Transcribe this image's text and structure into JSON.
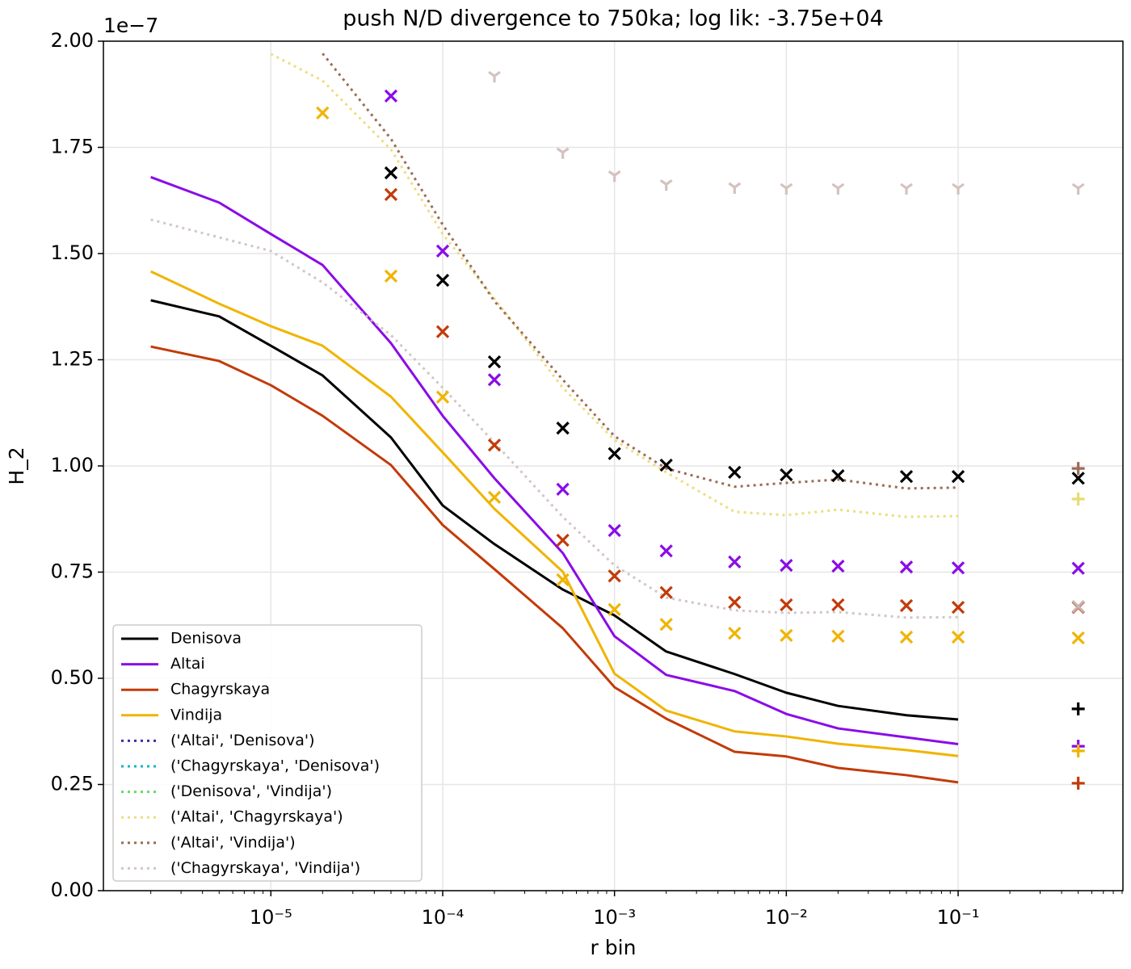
{
  "chart_data": {
    "type": "line",
    "title": "push N/D divergence to 750ka; log lik: -3.75e+04",
    "xlabel": "r bin",
    "ylabel": "H_2",
    "y_offset_label": "1e−7",
    "xscale": "log",
    "grid": true,
    "legend": "lower left",
    "xlim": [
      1.06e-06,
      0.91
    ],
    "ylim": [
      0,
      2
    ],
    "xticks": [
      {
        "value": 1e-05,
        "label": "10⁻⁵"
      },
      {
        "value": 0.0001,
        "label": "10⁻⁴"
      },
      {
        "value": 0.001,
        "label": "10⁻³"
      },
      {
        "value": 0.01,
        "label": "10⁻²"
      },
      {
        "value": 0.1,
        "label": "10⁻¹"
      }
    ],
    "xminorticks": [
      2e-06,
      3e-06,
      4e-06,
      5e-06,
      6e-06,
      7e-06,
      8e-06,
      9e-06,
      2e-05,
      3e-05,
      4e-05,
      5e-05,
      6e-05,
      7e-05,
      8e-05,
      9e-05,
      0.0002,
      0.0003,
      0.0004,
      0.0005,
      0.0006,
      0.0007,
      0.0008,
      0.0009,
      0.002,
      0.003,
      0.004,
      0.005,
      0.006,
      0.007,
      0.008,
      0.009,
      0.02,
      0.03,
      0.04,
      0.05,
      0.06,
      0.07,
      0.08,
      0.09,
      0.2,
      0.3,
      0.4,
      0.5,
      0.6,
      0.7,
      0.8,
      0.9
    ],
    "yticks": [
      {
        "value": 0,
        "label": "0.00"
      },
      {
        "value": 0.25,
        "label": "0.25"
      },
      {
        "value": 0.5,
        "label": "0.50"
      },
      {
        "value": 0.75,
        "label": "0.75"
      },
      {
        "value": 1,
        "label": "1.00"
      },
      {
        "value": 1.25,
        "label": "1.25"
      },
      {
        "value": 1.5,
        "label": "1.50"
      },
      {
        "value": 1.75,
        "label": "1.75"
      },
      {
        "value": 2,
        "label": "2.00"
      }
    ],
    "x": [
      2e-06,
      5e-06,
      1e-05,
      2e-05,
      5e-05,
      0.0001,
      0.0002,
      0.0005,
      0.001,
      0.002,
      0.005,
      0.01,
      0.02,
      0.05,
      0.1,
      0.5
    ],
    "series": [
      {
        "name": "Denisova",
        "color": "#000000",
        "style": "solid",
        "values": [
          1.39,
          1.352,
          1.283,
          1.213,
          1.067,
          0.907,
          0.816,
          0.709,
          0.648,
          0.563,
          0.51,
          0.466,
          0.435,
          0.413,
          0.403,
          null
        ]
      },
      {
        "name": "Altai",
        "color": "#8a0ce8",
        "style": "solid",
        "values": [
          1.68,
          1.62,
          1.546,
          1.473,
          1.289,
          1.118,
          0.971,
          0.795,
          0.599,
          0.508,
          0.47,
          0.416,
          0.382,
          0.361,
          0.345,
          null
        ]
      },
      {
        "name": "Chagyrskaya",
        "color": "#c23b0a",
        "style": "solid",
        "values": [
          1.281,
          1.247,
          1.19,
          1.118,
          1.002,
          0.861,
          0.757,
          0.618,
          0.479,
          0.405,
          0.327,
          0.316,
          0.289,
          0.272,
          0.255,
          null
        ]
      },
      {
        "name": "Vindija",
        "color": "#f0b400",
        "style": "solid",
        "values": [
          1.458,
          1.382,
          1.329,
          1.283,
          1.163,
          1.032,
          0.899,
          0.751,
          0.511,
          0.424,
          0.375,
          0.363,
          0.346,
          0.331,
          0.317,
          null
        ]
      },
      {
        "name": "('Altai', 'Denisova')",
        "color": "#3a2fa8",
        "style": "dotted",
        "values": [
          null,
          null,
          null,
          null,
          null,
          null,
          null,
          null,
          null,
          null,
          null,
          null,
          null,
          null,
          null,
          null
        ]
      },
      {
        "name": "('Chagyrskaya', 'Denisova')",
        "color": "#10b4c8",
        "style": "dotted",
        "values": [
          null,
          null,
          null,
          null,
          null,
          null,
          null,
          null,
          null,
          null,
          null,
          null,
          null,
          null,
          null,
          null
        ]
      },
      {
        "name": "('Denisova', 'Vindija')",
        "color": "#66d966",
        "style": "dotted",
        "values": [
          null,
          null,
          null,
          null,
          null,
          null,
          null,
          null,
          null,
          null,
          null,
          null,
          null,
          null,
          null,
          null
        ]
      },
      {
        "name": "('Altai', 'Chagyrskaya')",
        "color": "#eedd80",
        "style": "dotted",
        "values": [
          null,
          null,
          1.97,
          1.907,
          1.745,
          1.546,
          1.394,
          1.184,
          1.061,
          0.985,
          0.892,
          0.884,
          0.897,
          0.88,
          0.882,
          null
        ]
      },
      {
        "name": "('Altai', 'Vindija')",
        "color": "#9c6b55",
        "style": "dotted",
        "values": [
          null,
          null,
          null,
          1.971,
          1.77,
          1.568,
          1.388,
          1.203,
          1.07,
          0.994,
          0.951,
          0.96,
          0.968,
          0.947,
          0.949,
          null
        ]
      },
      {
        "name": "('Chagyrskaya', 'Vindija')",
        "color": "#d2c6c6",
        "style": "dotted",
        "values": [
          1.58,
          1.538,
          1.506,
          1.432,
          1.308,
          1.184,
          1.055,
          0.88,
          0.766,
          0.69,
          0.66,
          0.654,
          0.656,
          0.643,
          0.644,
          null
        ]
      },
      {
        "color": "#d4c2bf",
        "marker": "tri",
        "values": [
          null,
          null,
          null,
          null,
          null,
          null,
          1.918,
          1.738,
          1.684,
          1.663,
          1.656,
          1.654,
          1.654,
          1.654,
          1.654,
          1.654
        ]
      },
      {
        "color": "#000000",
        "marker": "x",
        "values": [
          null,
          null,
          null,
          null,
          1.69,
          1.437,
          1.245,
          1.089,
          1.029,
          1.002,
          0.985,
          0.979,
          0.977,
          0.975,
          0.975,
          0.971
        ]
      },
      {
        "color": "#8a0ce8",
        "marker": "x",
        "values": [
          null,
          null,
          null,
          null,
          1.871,
          1.506,
          1.203,
          0.945,
          0.848,
          0.8,
          0.774,
          0.766,
          0.764,
          0.762,
          0.76,
          0.759
        ]
      },
      {
        "color": "#c23b0a",
        "marker": "x",
        "values": [
          null,
          null,
          null,
          null,
          1.639,
          1.316,
          1.049,
          0.825,
          0.741,
          0.702,
          0.679,
          0.673,
          0.673,
          0.671,
          0.667,
          0.667
        ]
      },
      {
        "color": "#f0b400",
        "marker": "x",
        "values": [
          null,
          null,
          null,
          1.831,
          1.447,
          1.162,
          0.926,
          0.732,
          0.662,
          0.627,
          0.606,
          0.601,
          0.599,
          0.597,
          0.597,
          0.595
        ]
      },
      {
        "color": "#c9b4b4",
        "marker": "x",
        "values": [
          null,
          null,
          null,
          null,
          null,
          null,
          null,
          null,
          null,
          null,
          null,
          null,
          null,
          null,
          null,
          0.669
        ]
      },
      {
        "color": "#9c6b55",
        "marker": "plus",
        "values": [
          null,
          null,
          null,
          null,
          null,
          null,
          null,
          null,
          null,
          null,
          null,
          null,
          null,
          null,
          null,
          0.994
        ]
      },
      {
        "color": "#e8dc70",
        "marker": "plus",
        "values": [
          null,
          null,
          null,
          null,
          null,
          null,
          null,
          null,
          null,
          null,
          null,
          null,
          null,
          null,
          null,
          0.922
        ]
      },
      {
        "color": "#000000",
        "marker": "plus",
        "values": [
          null,
          null,
          null,
          null,
          null,
          null,
          null,
          null,
          null,
          null,
          null,
          null,
          null,
          null,
          null,
          0.428
        ]
      },
      {
        "color": "#8a0ce8",
        "marker": "plus",
        "values": [
          null,
          null,
          null,
          null,
          null,
          null,
          null,
          null,
          null,
          null,
          null,
          null,
          null,
          null,
          null,
          0.34
        ]
      },
      {
        "color": "#f0b400",
        "marker": "plus",
        "values": [
          null,
          null,
          null,
          null,
          null,
          null,
          null,
          null,
          null,
          null,
          null,
          null,
          null,
          null,
          null,
          0.329
        ]
      },
      {
        "color": "#c23b0a",
        "marker": "plus",
        "values": [
          null,
          null,
          null,
          null,
          null,
          null,
          null,
          null,
          null,
          null,
          null,
          null,
          null,
          null,
          null,
          0.253
        ]
      }
    ]
  }
}
